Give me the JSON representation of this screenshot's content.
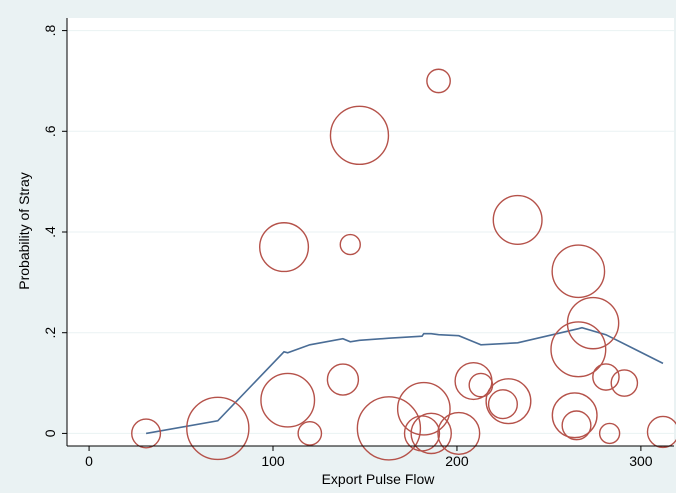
{
  "chart_data": {
    "type": "scatter",
    "title": "",
    "xlabel": "Export Pulse Flow",
    "ylabel": "Probability of Stray",
    "xlim": [
      -12,
      318
    ],
    "ylim": [
      -0.025,
      0.825
    ],
    "xticks": [
      0,
      100,
      200,
      300
    ],
    "xtick_labels": [
      "0",
      "100",
      "200",
      "300"
    ],
    "yticks": [
      0,
      0.2,
      0.4,
      0.6,
      0.8
    ],
    "ytick_labels": [
      "0",
      ".2",
      ".4",
      ".6",
      ".8"
    ],
    "grid": true,
    "legend": "none",
    "colors": {
      "bubble": "#b5524a",
      "line": "#4a6d96",
      "plot_bg": "#ffffff",
      "outer_bg": "#eaf2f3"
    },
    "series": [
      {
        "type": "scatter",
        "marker": "hollow-circle",
        "size_encoding": "bubble radius ~ weight",
        "points": [
          {
            "x": 31,
            "y": 0.0,
            "w": 5
          },
          {
            "x": 70,
            "y": 0.01,
            "w": 29
          },
          {
            "x": 106,
            "y": 0.37,
            "w": 17
          },
          {
            "x": 108,
            "y": 0.066,
            "w": 21
          },
          {
            "x": 120,
            "y": 0.0,
            "w": 3
          },
          {
            "x": 138,
            "y": 0.107,
            "w": 6
          },
          {
            "x": 142,
            "y": 0.375,
            "w": 2
          },
          {
            "x": 147,
            "y": 0.592,
            "w": 25
          },
          {
            "x": 163,
            "y": 0.01,
            "w": 30
          },
          {
            "x": 181,
            "y": 0.0,
            "w": 8
          },
          {
            "x": 182,
            "y": 0.049,
            "w": 20
          },
          {
            "x": 186,
            "y": 0.0,
            "w": 11
          },
          {
            "x": 190,
            "y": 0.7,
            "w": 3
          },
          {
            "x": 201,
            "y": 0.0,
            "w": 12
          },
          {
            "x": 209,
            "y": 0.104,
            "w": 9
          },
          {
            "x": 213,
            "y": 0.096,
            "w": 3
          },
          {
            "x": 225,
            "y": 0.058,
            "w": 5
          },
          {
            "x": 228,
            "y": 0.064,
            "w": 14
          },
          {
            "x": 233,
            "y": 0.424,
            "w": 17
          },
          {
            "x": 264,
            "y": 0.036,
            "w": 14
          },
          {
            "x": 265,
            "y": 0.016,
            "w": 5
          },
          {
            "x": 266,
            "y": 0.322,
            "w": 20
          },
          {
            "x": 266,
            "y": 0.167,
            "w": 22
          },
          {
            "x": 274,
            "y": 0.219,
            "w": 19
          },
          {
            "x": 281,
            "y": 0.112,
            "w": 4
          },
          {
            "x": 283,
            "y": 0.0,
            "w": 2
          },
          {
            "x": 291,
            "y": 0.1,
            "w": 4
          },
          {
            "x": 312,
            "y": 0.003,
            "w": 6
          }
        ]
      },
      {
        "type": "line",
        "points": [
          {
            "x": 31,
            "y": 0.0
          },
          {
            "x": 70,
            "y": 0.025
          },
          {
            "x": 106,
            "y": 0.162
          },
          {
            "x": 108,
            "y": 0.16
          },
          {
            "x": 120,
            "y": 0.176
          },
          {
            "x": 138,
            "y": 0.188
          },
          {
            "x": 142,
            "y": 0.182
          },
          {
            "x": 147,
            "y": 0.185
          },
          {
            "x": 163,
            "y": 0.189
          },
          {
            "x": 181,
            "y": 0.193
          },
          {
            "x": 182,
            "y": 0.198
          },
          {
            "x": 186,
            "y": 0.198
          },
          {
            "x": 190,
            "y": 0.196
          },
          {
            "x": 201,
            "y": 0.194
          },
          {
            "x": 209,
            "y": 0.182
          },
          {
            "x": 213,
            "y": 0.176
          },
          {
            "x": 233,
            "y": 0.18
          },
          {
            "x": 266,
            "y": 0.208
          },
          {
            "x": 268,
            "y": 0.21
          },
          {
            "x": 281,
            "y": 0.196
          },
          {
            "x": 312,
            "y": 0.139
          }
        ]
      }
    ]
  }
}
